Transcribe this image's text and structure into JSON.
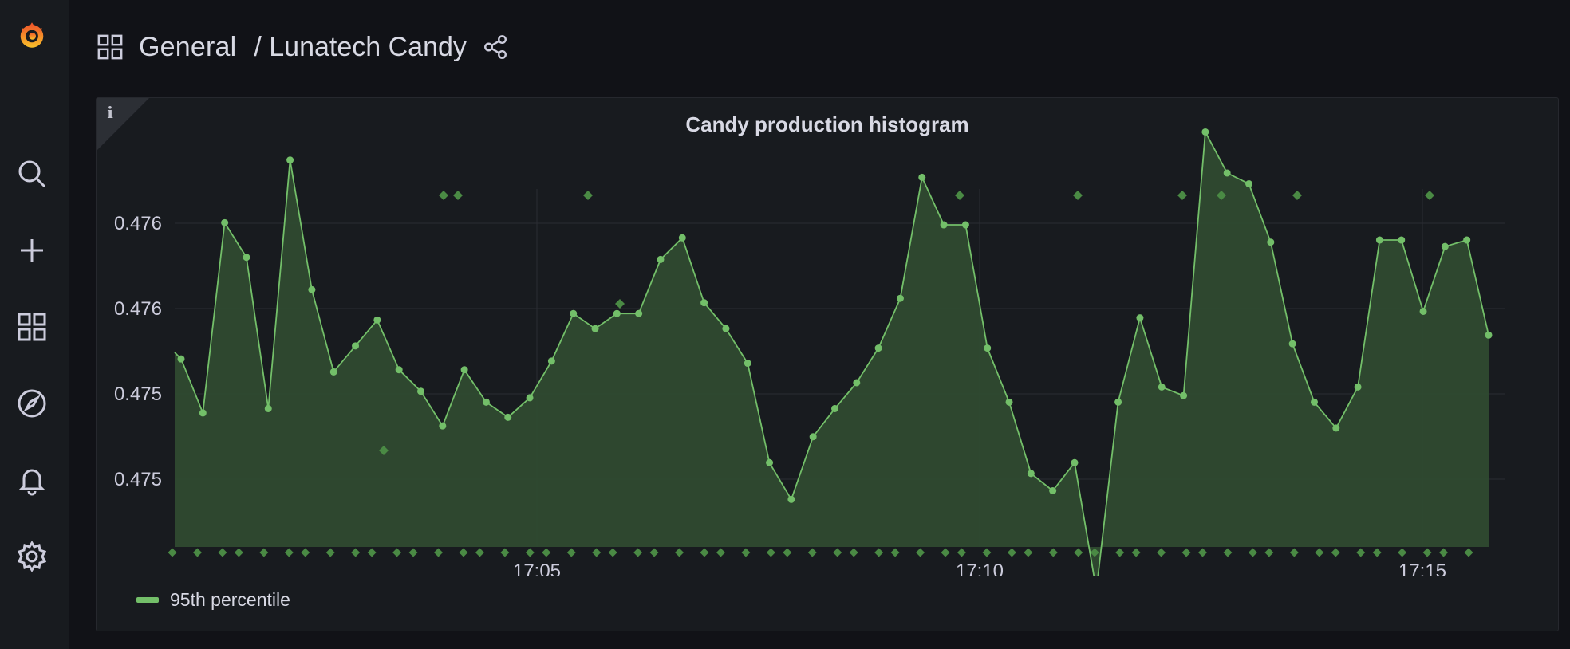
{
  "breadcrumb": {
    "folder": "General",
    "separator": "/",
    "dashboard": "Lunatech Candy"
  },
  "sidebar": {
    "items": [
      {
        "name": "search-icon"
      },
      {
        "name": "plus-icon"
      },
      {
        "name": "dashboards-icon"
      },
      {
        "name": "explore-icon"
      },
      {
        "name": "alerting-icon"
      },
      {
        "name": "settings-icon"
      }
    ]
  },
  "panel": {
    "title": "Candy production histogram",
    "info_icon": "i"
  },
  "colors": {
    "series": "#73bf69",
    "fill": "#2f4a30",
    "exemplar": "#4a8a44"
  },
  "chart_data": {
    "type": "area",
    "title": "Candy production histogram",
    "ytick_labels": [
      "0.476",
      "0.476",
      "0.475",
      "0.475"
    ],
    "xtick_labels": [
      "17:05",
      "17:10",
      "17:15"
    ],
    "ylim": [
      0.4746,
      0.4764
    ],
    "series": [
      {
        "name": "95th percentile",
        "values": [
          0.47547,
          0.47522,
          0.4761,
          0.47594,
          0.47524,
          0.47639,
          0.47579,
          0.47541,
          0.47553,
          0.47565,
          0.47542,
          0.47532,
          0.47516,
          0.47542,
          0.47527,
          0.4752,
          0.47529,
          0.47546,
          0.47568,
          0.47561,
          0.47568,
          0.47568,
          0.47593,
          0.47603,
          0.47573,
          0.47561,
          0.47545,
          0.47499,
          0.47482,
          0.47511,
          0.47524,
          0.47536,
          0.47552,
          0.47575,
          0.47631,
          0.47609,
          0.47609,
          0.47552,
          0.47527,
          0.47494,
          0.47486,
          0.47499,
          0.4744,
          0.47527,
          0.47566,
          0.47534,
          0.4753,
          0.47652,
          0.47633,
          0.47628,
          0.47601,
          0.47554,
          0.47527,
          0.47515,
          0.47534,
          0.47602,
          0.47602,
          0.47569,
          0.47599,
          0.47602,
          0.47558
        ]
      }
    ],
    "exemplars_top": 9,
    "exemplars_bottom": 60,
    "grid": true,
    "legend_position": "bottom-left"
  }
}
